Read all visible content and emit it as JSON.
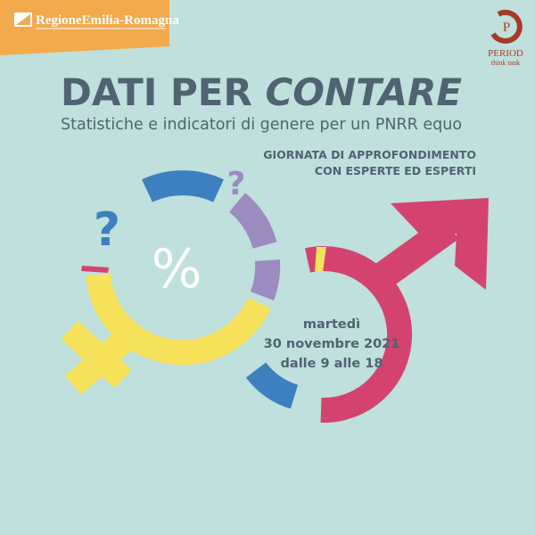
{
  "header": {
    "region_logo": "RegioneEmilia-Romagna",
    "period_initial": "P",
    "period_name": "PERIOD",
    "period_tagline": "think tank"
  },
  "title": {
    "part1": "DATI PER",
    "part2": "CONTARE"
  },
  "subtitle": "Statistiche e indicatori di genere per un PNRR equo",
  "event": {
    "line1": "GIORNATA DI APPROFONDIMENTO",
    "line2": "CON ESPERTE ED ESPERTI"
  },
  "symbols": {
    "question1": "?",
    "question2": "?",
    "percent": "%"
  },
  "date": {
    "day": "martedì",
    "date": "30 novembre 2021",
    "time": "dalle 9 alle 18"
  }
}
